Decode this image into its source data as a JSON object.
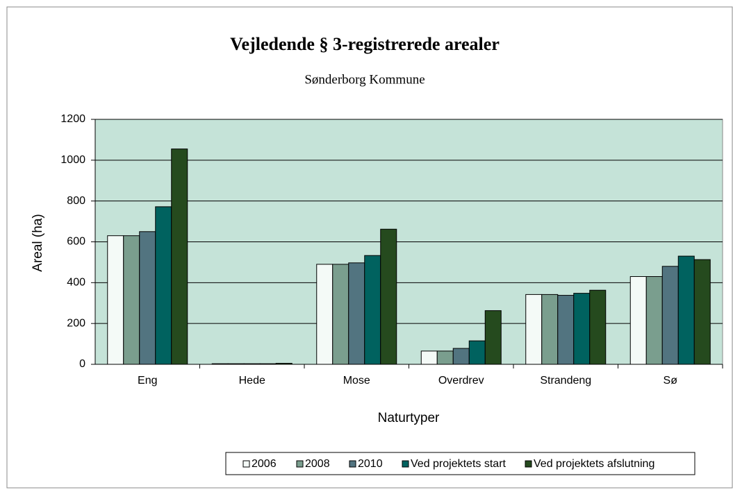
{
  "chart_data": {
    "type": "bar",
    "title": "Vejledende § 3-registrerede arealer",
    "subtitle": "Sønderborg Kommune",
    "x_label": "Naturtyper",
    "y_label": "Areal (ha)",
    "categories": [
      "Eng",
      "Hede",
      "Mose",
      "Overdrev",
      "Strandeng",
      "Sø"
    ],
    "series": [
      {
        "name": "2006",
        "color": "#f4faf7",
        "values": [
          630,
          3,
          490,
          65,
          342,
          430
        ]
      },
      {
        "name": "2008",
        "color": "#7a9e8e",
        "values": [
          630,
          3,
          490,
          65,
          342,
          430
        ]
      },
      {
        "name": "2010",
        "color": "#527480",
        "values": [
          650,
          3,
          497,
          78,
          338,
          480
        ]
      },
      {
        "name": "Ved projektets start",
        "color": "#00625f",
        "values": [
          772,
          3,
          533,
          115,
          348,
          530
        ]
      },
      {
        "name": "Ved projektets afslutning",
        "color": "#254a1e",
        "values": [
          1055,
          5,
          662,
          263,
          363,
          513
        ]
      }
    ],
    "ylim": [
      0,
      1200
    ],
    "yticks": [
      0,
      200,
      400,
      600,
      800,
      1000,
      1200
    ],
    "grid": true,
    "legend": "bottom"
  }
}
